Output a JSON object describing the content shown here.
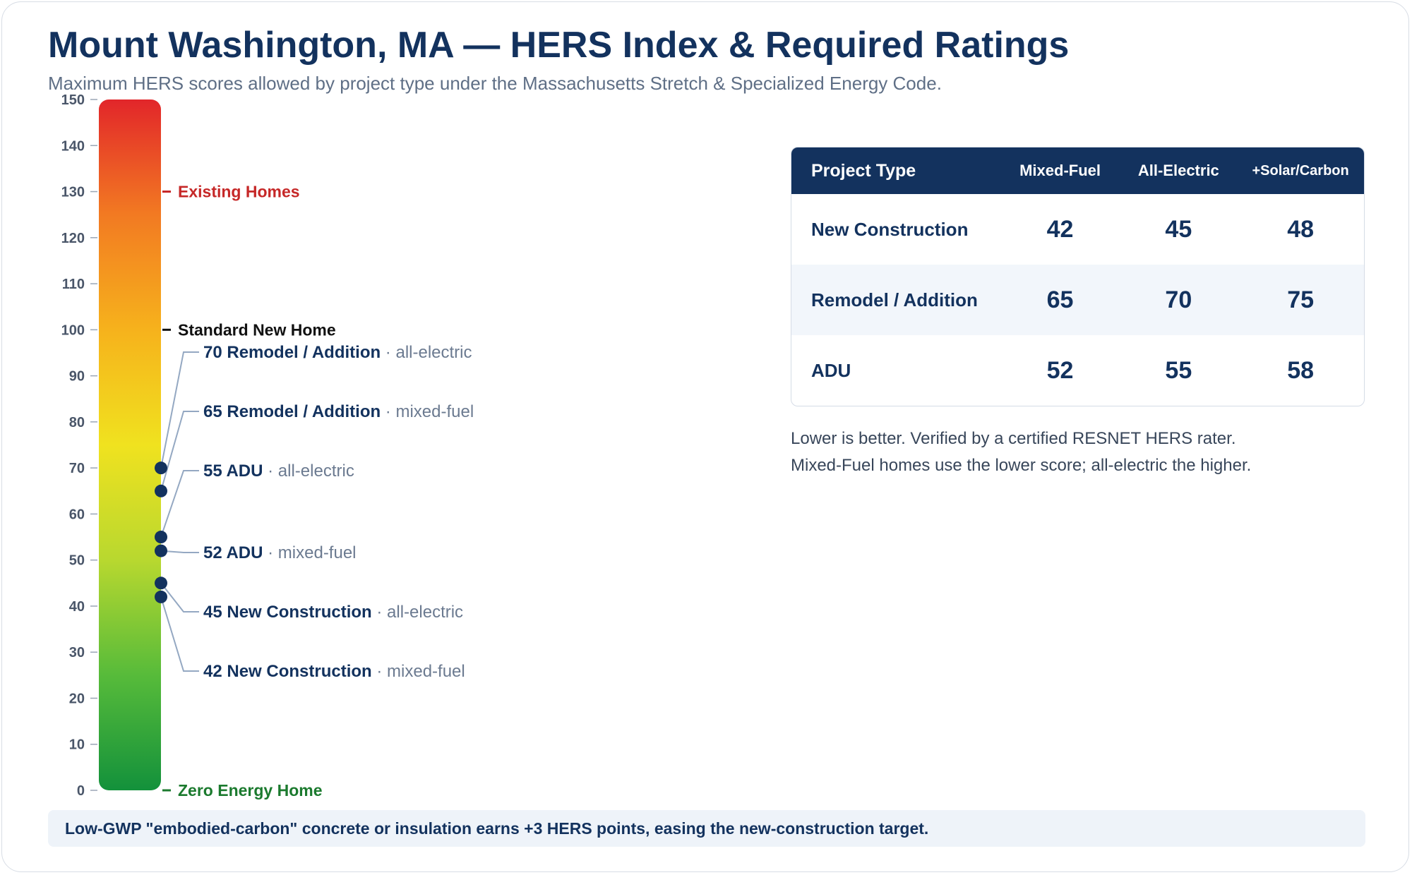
{
  "header": {
    "title": "Mount Washington, MA — HERS Index & Required Ratings",
    "subtitle": "Maximum HERS scores allowed by project type under the Massachusetts Stretch & Specialized Energy Code."
  },
  "chart_data": {
    "type": "scatter",
    "axis": {
      "ylim": [
        0,
        150
      ],
      "ticks": [
        0,
        10,
        20,
        30,
        40,
        50,
        60,
        70,
        80,
        90,
        100,
        110,
        120,
        130,
        140,
        150
      ]
    },
    "gradient_colors": [
      "#13913b",
      "#57bb3a",
      "#b8d82f",
      "#f0e21f",
      "#f6b21c",
      "#f27a22",
      "#e2262a"
    ],
    "reference_markers": [
      {
        "value": 130,
        "label": "Existing Homes",
        "color": "#c62828"
      },
      {
        "value": 100,
        "label": "Standard New Home",
        "color": "#111111"
      },
      {
        "value": 0,
        "label": "Zero Energy Home",
        "color": "#1b7a2e"
      }
    ],
    "points": [
      {
        "value": 70,
        "label": "Remodel / Addition",
        "note": "all-electric"
      },
      {
        "value": 65,
        "label": "Remodel / Addition",
        "note": "mixed-fuel"
      },
      {
        "value": 55,
        "label": "ADU",
        "note": "all-electric"
      },
      {
        "value": 52,
        "label": "ADU",
        "note": "mixed-fuel"
      },
      {
        "value": 45,
        "label": "New Construction",
        "note": "all-electric"
      },
      {
        "value": 42,
        "label": "New Construction",
        "note": "mixed-fuel"
      }
    ],
    "point_color": "#13325e"
  },
  "table": {
    "headers": [
      "Project Type",
      "Mixed-Fuel",
      "All-Electric",
      "+Solar/Carbon"
    ],
    "rows": [
      [
        "New Construction",
        "42",
        "45",
        "48"
      ],
      [
        "Remodel / Addition",
        "65",
        "70",
        "75"
      ],
      [
        "ADU",
        "52",
        "55",
        "58"
      ]
    ]
  },
  "notes": [
    "Lower is better. Verified by a certified RESNET HERS rater.",
    "Mixed-Fuel homes use the lower score; all-electric the higher."
  ],
  "callout": "Low-GWP \"embodied-carbon\" concrete or insulation earns +3 HERS points, easing the new-construction target."
}
